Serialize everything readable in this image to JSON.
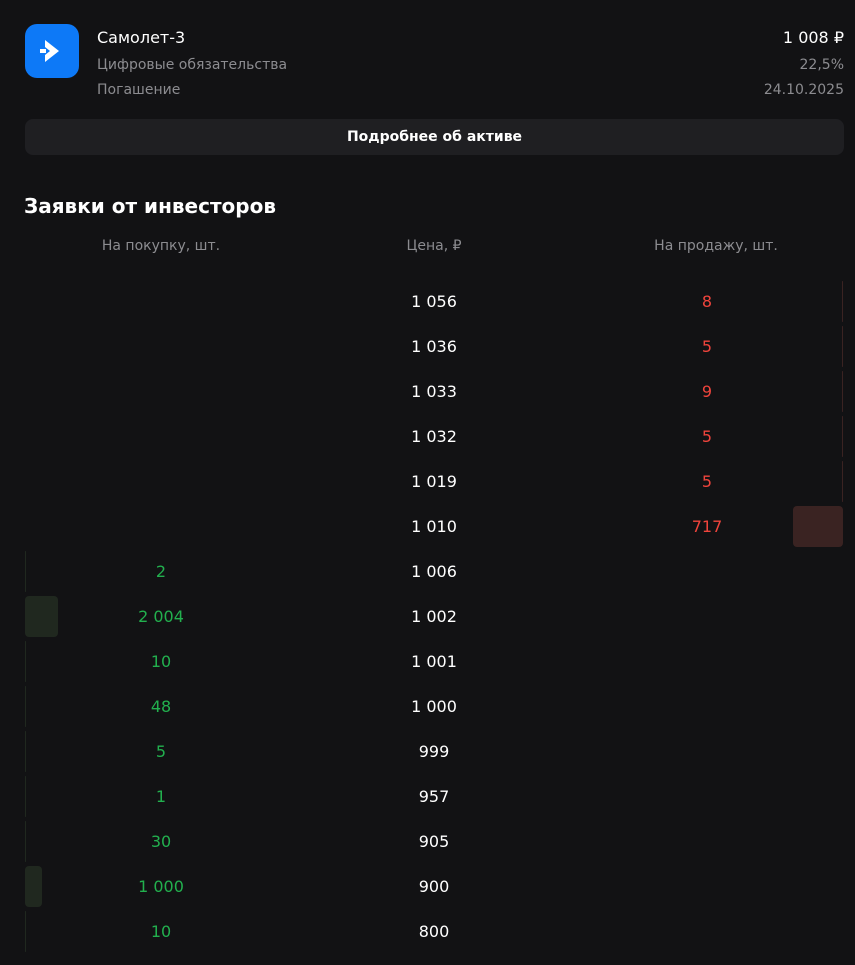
{
  "asset": {
    "name": "Самолет-3",
    "type": "Цифровые обязательства",
    "maturity_label": "Погашение",
    "price": "1 008 ₽",
    "yield": "22,5%",
    "maturity_date": "24.10.2025",
    "logo_icon": "chevron-right-icon",
    "logo_color": "#0d79f7"
  },
  "details_button_label": "Подробнее об активе",
  "orderbook": {
    "title": "Заявки от инвесторов",
    "headers": {
      "buy": "На покупку, шт.",
      "price": "Цена, ₽",
      "sell": "На продажу, шт."
    },
    "colors": {
      "buy": "#22b04e",
      "sell": "#f0443c",
      "buy_bar": "#20281f",
      "sell_bar": "#3a2322"
    },
    "rows": [
      {
        "buy": "",
        "price": "1 056",
        "sell": "8",
        "buy_depth": 0,
        "sell_depth": 0.011
      },
      {
        "buy": "",
        "price": "1 036",
        "sell": "5",
        "buy_depth": 0,
        "sell_depth": 0.007
      },
      {
        "buy": "",
        "price": "1 033",
        "sell": "9",
        "buy_depth": 0,
        "sell_depth": 0.013
      },
      {
        "buy": "",
        "price": "1 032",
        "sell": "5",
        "buy_depth": 0,
        "sell_depth": 0.007
      },
      {
        "buy": "",
        "price": "1 019",
        "sell": "5",
        "buy_depth": 0,
        "sell_depth": 0.007
      },
      {
        "buy": "",
        "price": "1 010",
        "sell": "717",
        "buy_depth": 0,
        "sell_depth": 1.0
      },
      {
        "buy": "2",
        "price": "1 006",
        "sell": "",
        "buy_depth": 0.001,
        "sell_depth": 0
      },
      {
        "buy": "2 004",
        "price": "1 002",
        "sell": "",
        "buy_depth": 1.0,
        "sell_depth": 0
      },
      {
        "buy": "10",
        "price": "1 001",
        "sell": "",
        "buy_depth": 0.005,
        "sell_depth": 0
      },
      {
        "buy": "48",
        "price": "1 000",
        "sell": "",
        "buy_depth": 0.024,
        "sell_depth": 0
      },
      {
        "buy": "5",
        "price": "999",
        "sell": "",
        "buy_depth": 0.002,
        "sell_depth": 0
      },
      {
        "buy": "1",
        "price": "957",
        "sell": "",
        "buy_depth": 0.0005,
        "sell_depth": 0
      },
      {
        "buy": "30",
        "price": "905",
        "sell": "",
        "buy_depth": 0.015,
        "sell_depth": 0
      },
      {
        "buy": "1 000",
        "price": "900",
        "sell": "",
        "buy_depth": 0.5,
        "sell_depth": 0
      },
      {
        "buy": "10",
        "price": "800",
        "sell": "",
        "buy_depth": 0.005,
        "sell_depth": 0
      }
    ]
  }
}
